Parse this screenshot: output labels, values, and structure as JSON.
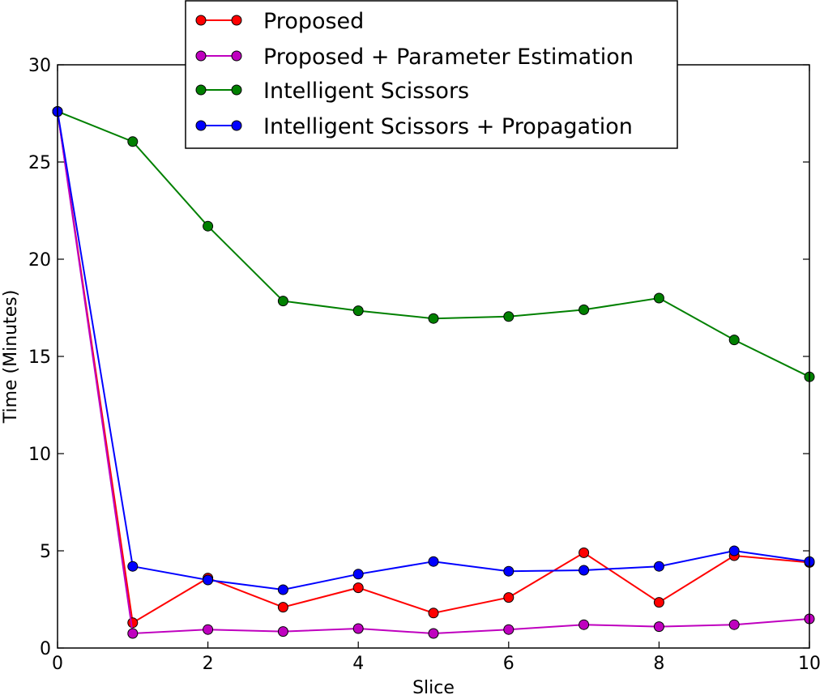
{
  "chart_data": {
    "type": "line",
    "title": "",
    "xlabel": "Slice",
    "ylabel": "Time (Minutes)",
    "xlim": [
      0,
      10
    ],
    "ylim": [
      0,
      30
    ],
    "xticks": [
      0,
      2,
      4,
      6,
      8,
      10
    ],
    "yticks": [
      0,
      5,
      10,
      15,
      20,
      25,
      30
    ],
    "grid": false,
    "legend": "top-center",
    "x": [
      0,
      1,
      2,
      3,
      4,
      5,
      6,
      7,
      8,
      9,
      10
    ],
    "series": [
      {
        "name": "Proposed",
        "color": "#ff0000",
        "values": [
          27.6,
          1.3,
          3.6,
          2.1,
          3.1,
          1.8,
          2.6,
          4.9,
          2.35,
          4.75,
          4.4
        ]
      },
      {
        "name": "Proposed + Parameter Estimation",
        "color": "#bf00bf",
        "values": [
          27.6,
          0.75,
          0.95,
          0.85,
          1.0,
          0.75,
          0.95,
          1.2,
          1.1,
          1.2,
          1.5
        ]
      },
      {
        "name": "Intelligent Scissors",
        "color": "#008000",
        "values": [
          27.6,
          26.05,
          21.7,
          17.85,
          17.35,
          16.95,
          17.05,
          17.4,
          18.0,
          15.85,
          13.95
        ]
      },
      {
        "name": "Intelligent Scissors + Propagation",
        "color": "#0000ff",
        "values": [
          27.6,
          4.2,
          3.5,
          3.0,
          3.8,
          4.45,
          3.95,
          4.0,
          4.2,
          5.0,
          4.45
        ]
      }
    ]
  }
}
